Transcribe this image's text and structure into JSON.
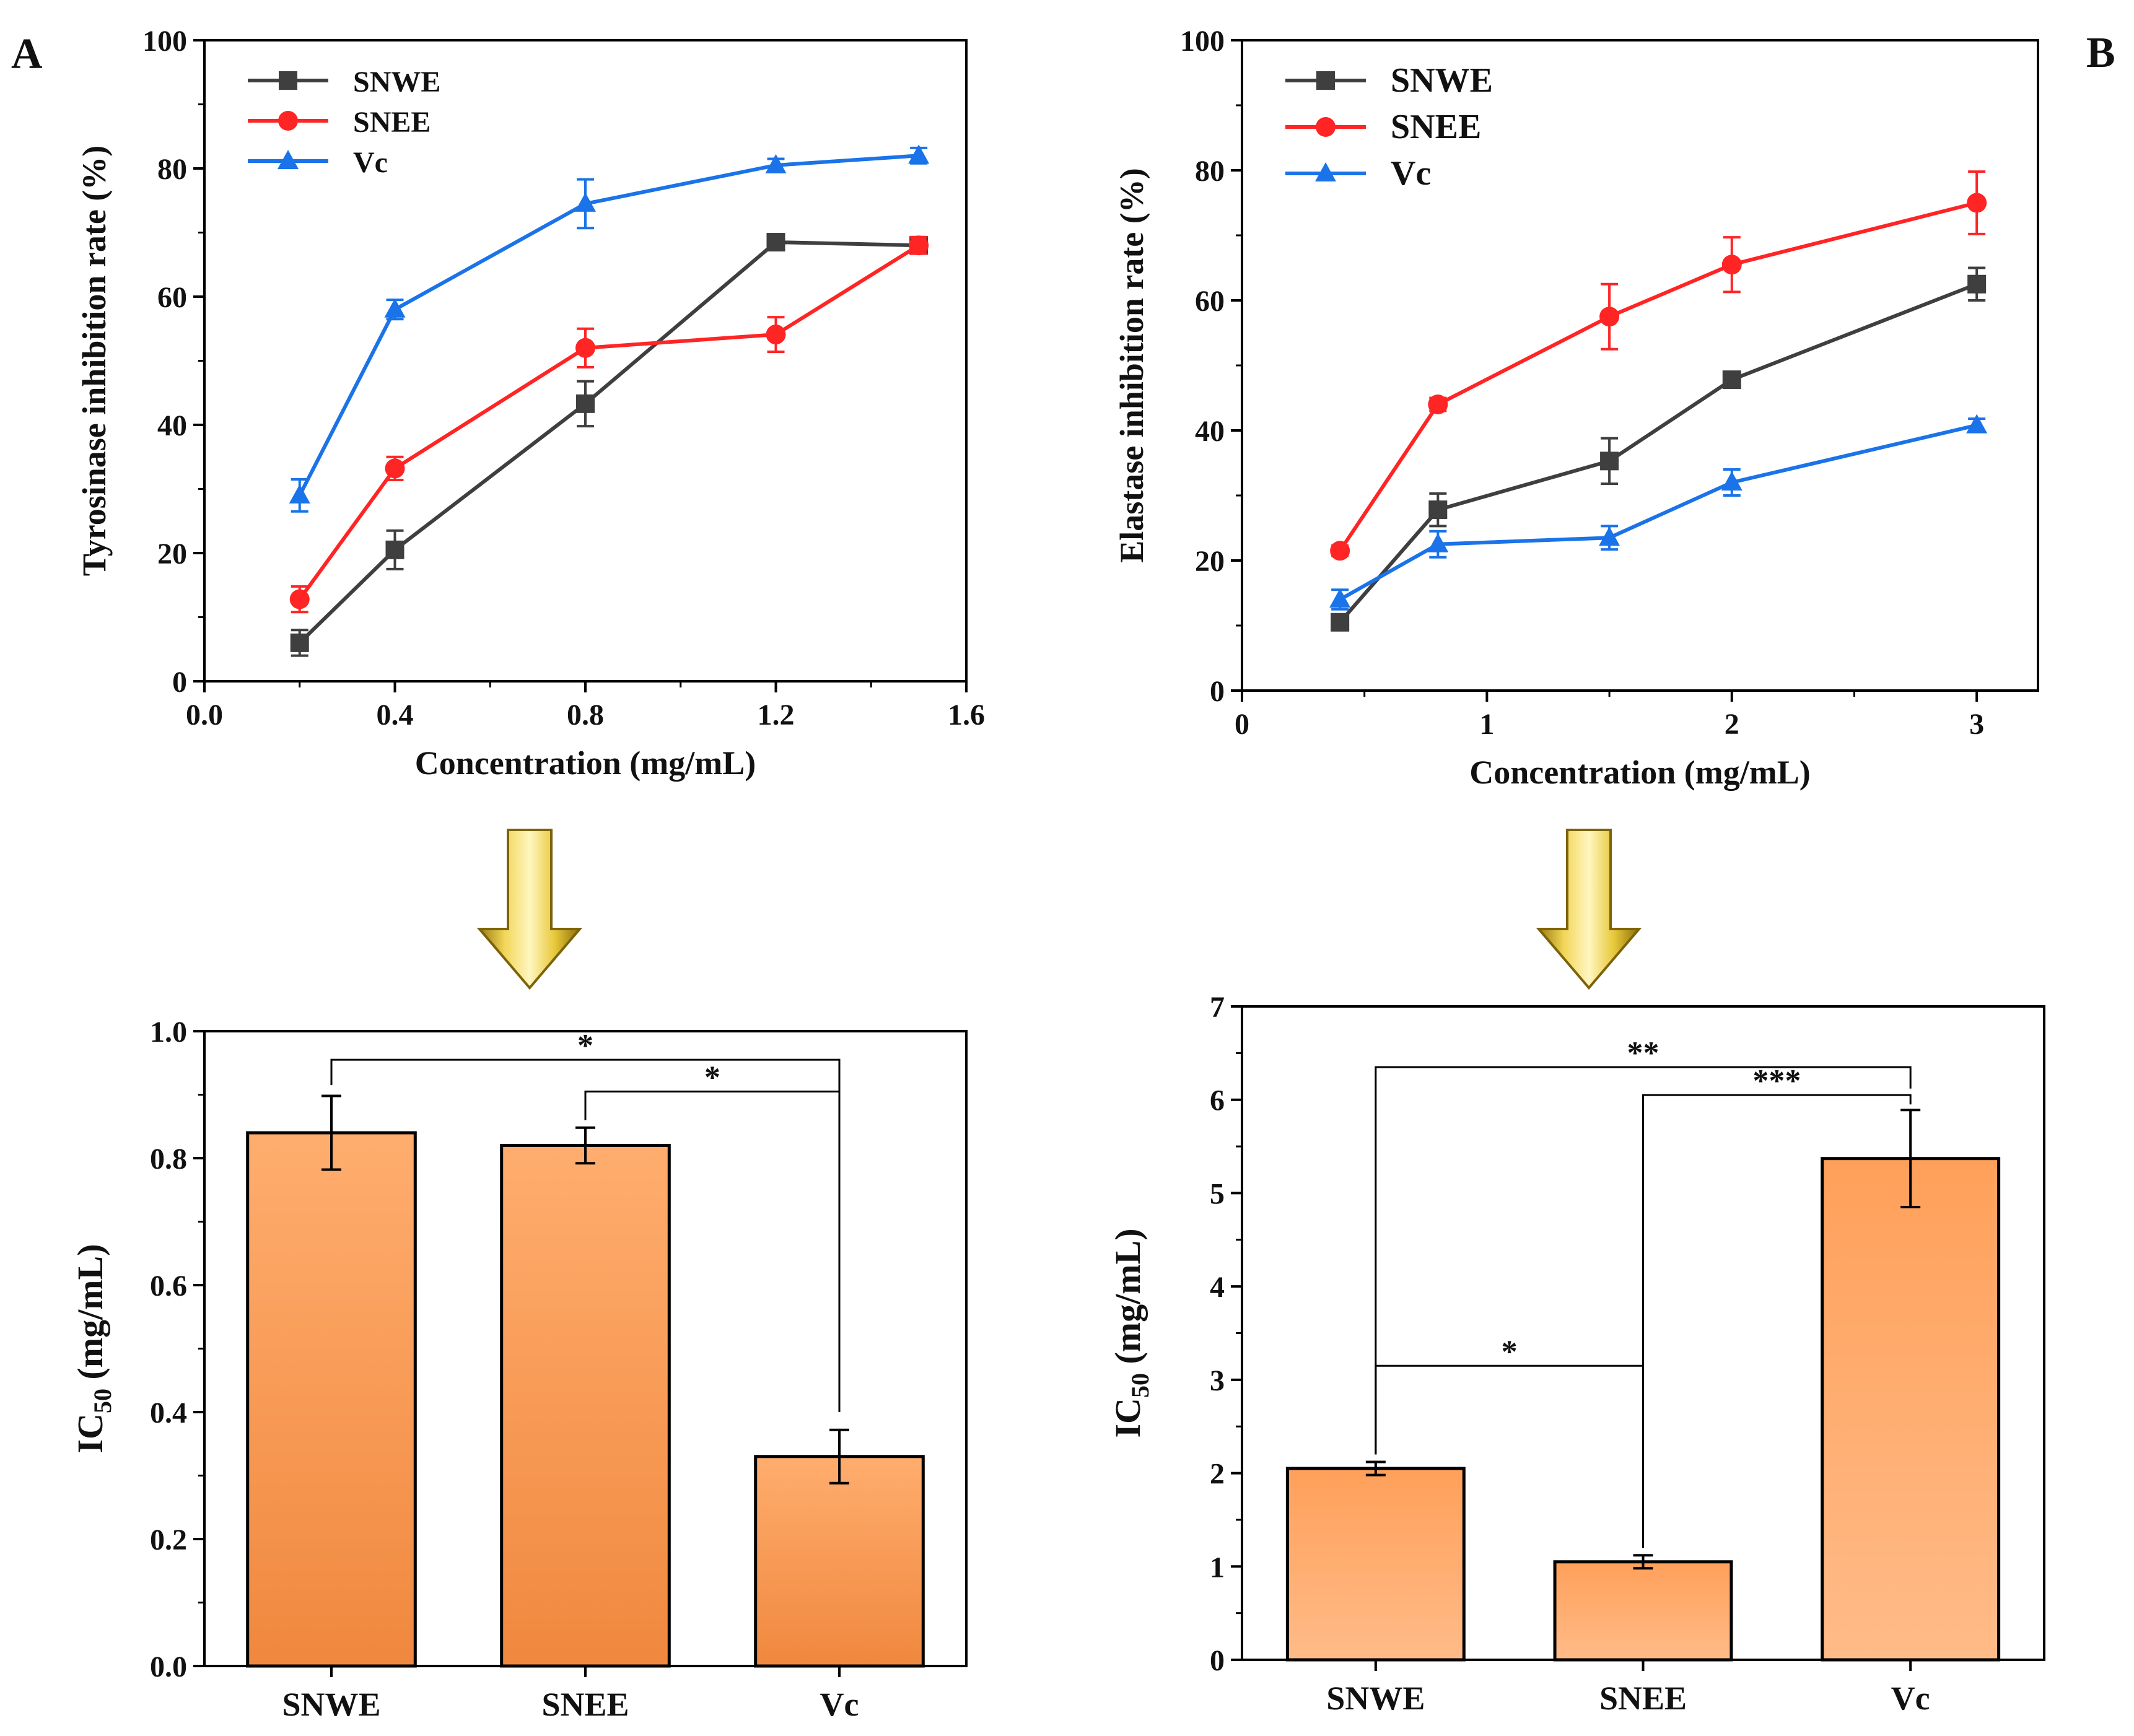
{
  "panels": {
    "left_label": "A",
    "right_label": "B"
  },
  "significance": {
    "tyrosinase": [
      "*",
      "*"
    ],
    "elastase": [
      "**",
      "***",
      "*"
    ]
  },
  "chart_data": [
    {
      "id": "tyrosinase-line",
      "type": "line",
      "xlabel": "Concentration (mg/mL)",
      "ylabel": "Tyrosinase inhibition rate (%)",
      "xlim": [
        0,
        1.6
      ],
      "ylim": [
        0,
        100
      ],
      "xticks": [
        "0.0",
        "0.4",
        "0.8",
        "1.2",
        "1.6"
      ],
      "yticks": [
        "0",
        "20",
        "40",
        "60",
        "80",
        "100"
      ],
      "x": [
        0.2,
        0.4,
        0.8,
        1.2,
        1.5
      ],
      "series": [
        {
          "name": "SNWE",
          "color": "#3f3f3f",
          "marker": "square",
          "values": [
            6,
            20.5,
            43.3,
            68.5,
            68
          ],
          "errors": [
            2,
            3,
            3.5,
            0.8,
            0.8
          ]
        },
        {
          "name": "SNEE",
          "color": "#ff2525",
          "marker": "circle",
          "values": [
            12.8,
            33.2,
            52,
            54.1,
            68
          ],
          "errors": [
            2,
            1.8,
            3,
            2.7,
            1.3
          ]
        },
        {
          "name": "Vc",
          "color": "#1a73e8",
          "marker": "triangle",
          "values": [
            29,
            58,
            74.5,
            80.5,
            82
          ],
          "errors": [
            2.5,
            1.5,
            3.8,
            1,
            1.2
          ]
        }
      ]
    },
    {
      "id": "elastase-line",
      "type": "line",
      "xlabel": "Concentration (mg/mL)",
      "ylabel": "Elastase inhibition rate (%)",
      "xlim": [
        0,
        3.25
      ],
      "ylim": [
        0,
        100
      ],
      "xticks": [
        "0",
        "1",
        "2",
        "3"
      ],
      "yticks": [
        "0",
        "20",
        "40",
        "60",
        "80",
        "100"
      ],
      "x": [
        0.4,
        0.8,
        1.5,
        2,
        3
      ],
      "series": [
        {
          "name": "SNWE",
          "color": "#3f3f3f",
          "marker": "square",
          "values": [
            10.5,
            27.8,
            35.3,
            47.8,
            62.5
          ],
          "errors": [
            1,
            2.5,
            3.5,
            1,
            2.5
          ]
        },
        {
          "name": "SNEE",
          "color": "#ff2525",
          "marker": "circle",
          "values": [
            21.5,
            44,
            57.5,
            65.5,
            75
          ],
          "errors": [
            0.8,
            1,
            5,
            4.2,
            4.8
          ]
        },
        {
          "name": "Vc",
          "color": "#1a73e8",
          "marker": "triangle",
          "values": [
            14,
            22.5,
            23.5,
            32,
            40.8
          ],
          "errors": [
            1.5,
            2,
            1.8,
            2,
            1
          ]
        }
      ]
    },
    {
      "id": "tyrosinase-ic50",
      "type": "bar",
      "ylabel": "IC50 (mg/mL)",
      "ylabel_main": "IC",
      "ylabel_sub": "50",
      "ylabel_unit": " (mg/mL)",
      "ylim": [
        0,
        1.0
      ],
      "yticks": [
        "0.0",
        "0.2",
        "0.4",
        "0.6",
        "0.8",
        "1.0"
      ],
      "categories": [
        "SNWE",
        "SNEE",
        "Vc"
      ],
      "values": [
        0.84,
        0.82,
        0.33
      ],
      "errors": [
        0.058,
        0.028,
        0.042
      ]
    },
    {
      "id": "elastase-ic50",
      "type": "bar",
      "ylabel": "IC50 (mg/mL)",
      "ylabel_main": "IC",
      "ylabel_sub": "50",
      "ylabel_unit": " (mg/mL)",
      "ylim": [
        0,
        7
      ],
      "yticks": [
        "0",
        "1",
        "2",
        "3",
        "4",
        "5",
        "6",
        "7"
      ],
      "categories": [
        "SNWE",
        "SNEE",
        "Vc"
      ],
      "values": [
        2.05,
        1.05,
        5.37
      ],
      "errors": [
        0.07,
        0.07,
        0.52
      ]
    }
  ]
}
